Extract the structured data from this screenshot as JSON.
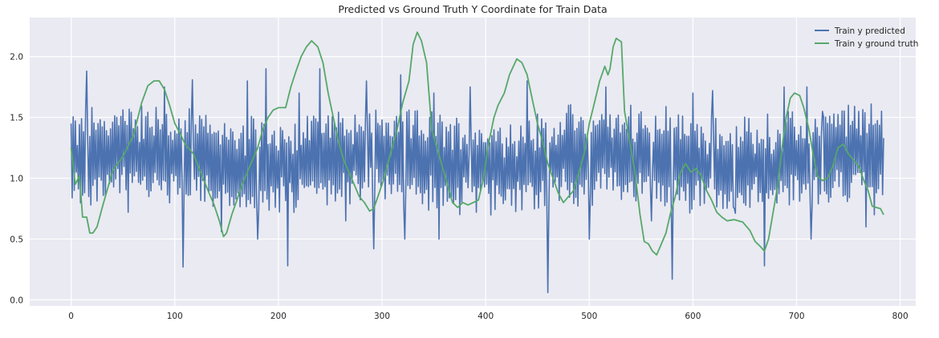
{
  "chart_data": {
    "type": "line",
    "title": "Predicted vs Ground Truth Y Coordinate for Train Data",
    "xlabel": "",
    "ylabel": "",
    "xlim": [
      -40,
      815
    ],
    "ylim": [
      -0.05,
      2.32
    ],
    "x_ticks": [
      0,
      100,
      200,
      300,
      400,
      500,
      600,
      700,
      800
    ],
    "y_ticks": [
      0.0,
      0.5,
      1.0,
      1.5,
      2.0
    ],
    "x_tick_labels": [
      "0",
      "100",
      "200",
      "300",
      "400",
      "500",
      "600",
      "700",
      "800"
    ],
    "y_tick_labels": [
      "0.0",
      "0.5",
      "1.0",
      "1.5",
      "2.0"
    ],
    "grid": true,
    "legend_position": "top-right",
    "n_points": 785,
    "series": [
      {
        "name": "Train y predicted",
        "color": "#4c72b0",
        "description": "noisy prediction oscillating around ~1.2 with spikes",
        "key_points": [
          {
            "x": 0,
            "y": 1.45
          },
          {
            "x": 3,
            "y": 0.9
          },
          {
            "x": 6,
            "y": 1.27
          },
          {
            "x": 10,
            "y": 1.49
          },
          {
            "x": 13,
            "y": 0.88
          },
          {
            "x": 15,
            "y": 1.88
          },
          {
            "x": 19,
            "y": 0.78
          },
          {
            "x": 40,
            "y": 1.46
          },
          {
            "x": 55,
            "y": 0.72
          },
          {
            "x": 90,
            "y": 1.75
          },
          {
            "x": 108,
            "y": 0.27
          },
          {
            "x": 117,
            "y": 1.81
          },
          {
            "x": 145,
            "y": 0.56
          },
          {
            "x": 170,
            "y": 1.8
          },
          {
            "x": 180,
            "y": 0.5
          },
          {
            "x": 188,
            "y": 1.9
          },
          {
            "x": 209,
            "y": 0.28
          },
          {
            "x": 220,
            "y": 1.7
          },
          {
            "x": 240,
            "y": 1.9
          },
          {
            "x": 265,
            "y": 0.65
          },
          {
            "x": 285,
            "y": 1.8
          },
          {
            "x": 292,
            "y": 0.42
          },
          {
            "x": 318,
            "y": 1.85
          },
          {
            "x": 322,
            "y": 0.5
          },
          {
            "x": 350,
            "y": 1.7
          },
          {
            "x": 355,
            "y": 0.5
          },
          {
            "x": 385,
            "y": 1.75
          },
          {
            "x": 391,
            "y": 0.72
          },
          {
            "x": 410,
            "y": 1.3
          },
          {
            "x": 440,
            "y": 1.8
          },
          {
            "x": 460,
            "y": 0.06
          },
          {
            "x": 480,
            "y": 1.6
          },
          {
            "x": 500,
            "y": 0.5
          },
          {
            "x": 516,
            "y": 1.75
          },
          {
            "x": 540,
            "y": 1.6
          },
          {
            "x": 560,
            "y": 0.65
          },
          {
            "x": 580,
            "y": 0.17
          },
          {
            "x": 600,
            "y": 1.7
          },
          {
            "x": 619,
            "y": 1.72
          },
          {
            "x": 640,
            "y": 0.75
          },
          {
            "x": 669,
            "y": 0.28
          },
          {
            "x": 688,
            "y": 1.75
          },
          {
            "x": 710,
            "y": 1.75
          },
          {
            "x": 714,
            "y": 0.5
          },
          {
            "x": 725,
            "y": 1.55
          },
          {
            "x": 750,
            "y": 1.6
          },
          {
            "x": 760,
            "y": 1.55
          },
          {
            "x": 767,
            "y": 0.6
          },
          {
            "x": 775,
            "y": 0.7
          },
          {
            "x": 784,
            "y": 1.33
          }
        ]
      },
      {
        "name": "Train y ground truth",
        "color": "#55a868",
        "description": "slowly oscillating ground truth curve",
        "points": [
          [
            0,
            1.25
          ],
          [
            4,
            0.95
          ],
          [
            8,
            1.02
          ],
          [
            11,
            0.68
          ],
          [
            15,
            0.68
          ],
          [
            18,
            0.55
          ],
          [
            21,
            0.55
          ],
          [
            25,
            0.6
          ],
          [
            30,
            0.76
          ],
          [
            40,
            1.06
          ],
          [
            50,
            1.18
          ],
          [
            60,
            1.35
          ],
          [
            68,
            1.62
          ],
          [
            74,
            1.76
          ],
          [
            80,
            1.8
          ],
          [
            85,
            1.8
          ],
          [
            90,
            1.73
          ],
          [
            95,
            1.6
          ],
          [
            100,
            1.45
          ],
          [
            105,
            1.37
          ],
          [
            110,
            1.28
          ],
          [
            118,
            1.2
          ],
          [
            125,
            1.05
          ],
          [
            132,
            0.9
          ],
          [
            138,
            0.78
          ],
          [
            143,
            0.65
          ],
          [
            147,
            0.52
          ],
          [
            150,
            0.55
          ],
          [
            155,
            0.7
          ],
          [
            160,
            0.82
          ],
          [
            165,
            0.95
          ],
          [
            170,
            1.05
          ],
          [
            175,
            1.15
          ],
          [
            180,
            1.25
          ],
          [
            185,
            1.4
          ],
          [
            190,
            1.5
          ],
          [
            195,
            1.56
          ],
          [
            200,
            1.58
          ],
          [
            207,
            1.58
          ],
          [
            212,
            1.75
          ],
          [
            217,
            1.88
          ],
          [
            222,
            2.0
          ],
          [
            227,
            2.08
          ],
          [
            232,
            2.13
          ],
          [
            238,
            2.08
          ],
          [
            243,
            1.95
          ],
          [
            248,
            1.7
          ],
          [
            253,
            1.5
          ],
          [
            258,
            1.3
          ],
          [
            263,
            1.15
          ],
          [
            268,
            1.05
          ],
          [
            273,
            0.95
          ],
          [
            278,
            0.85
          ],
          [
            283,
            0.8
          ],
          [
            288,
            0.73
          ],
          [
            292,
            0.75
          ],
          [
            296,
            0.85
          ],
          [
            302,
            1.0
          ],
          [
            308,
            1.2
          ],
          [
            314,
            1.38
          ],
          [
            320,
            1.62
          ],
          [
            326,
            1.8
          ],
          [
            330,
            2.1
          ],
          [
            334,
            2.2
          ],
          [
            338,
            2.13
          ],
          [
            343,
            1.95
          ],
          [
            348,
            1.4
          ],
          [
            353,
            1.25
          ],
          [
            358,
            1.1
          ],
          [
            363,
            0.95
          ],
          [
            368,
            0.8
          ],
          [
            373,
            0.76
          ],
          [
            378,
            0.8
          ],
          [
            383,
            0.78
          ],
          [
            388,
            0.8
          ],
          [
            393,
            0.82
          ],
          [
            398,
            1.0
          ],
          [
            402,
            1.25
          ],
          [
            408,
            1.5
          ],
          [
            412,
            1.6
          ],
          [
            418,
            1.7
          ],
          [
            423,
            1.85
          ],
          [
            430,
            1.98
          ],
          [
            435,
            1.95
          ],
          [
            440,
            1.85
          ],
          [
            445,
            1.65
          ],
          [
            450,
            1.45
          ],
          [
            455,
            1.3
          ],
          [
            460,
            1.12
          ],
          [
            465,
            1.0
          ],
          [
            470,
            0.88
          ],
          [
            475,
            0.8
          ],
          [
            480,
            0.85
          ],
          [
            485,
            0.9
          ],
          [
            490,
            1.05
          ],
          [
            495,
            1.2
          ],
          [
            500,
            1.45
          ],
          [
            505,
            1.62
          ],
          [
            510,
            1.8
          ],
          [
            515,
            1.92
          ],
          [
            518,
            1.85
          ],
          [
            520,
            1.9
          ],
          [
            523,
            2.08
          ],
          [
            526,
            2.15
          ],
          [
            531,
            2.12
          ],
          [
            534,
            1.55
          ],
          [
            539,
            1.3
          ],
          [
            544,
            1.05
          ],
          [
            549,
            0.7
          ],
          [
            553,
            0.48
          ],
          [
            557,
            0.46
          ],
          [
            561,
            0.4
          ],
          [
            565,
            0.37
          ],
          [
            569,
            0.45
          ],
          [
            574,
            0.55
          ],
          [
            578,
            0.7
          ],
          [
            583,
            0.85
          ],
          [
            588,
            1.05
          ],
          [
            593,
            1.12
          ],
          [
            598,
            1.05
          ],
          [
            603,
            1.08
          ],
          [
            608,
            1.02
          ],
          [
            613,
            0.9
          ],
          [
            618,
            0.82
          ],
          [
            623,
            0.72
          ],
          [
            628,
            0.68
          ],
          [
            633,
            0.65
          ],
          [
            640,
            0.66
          ],
          [
            648,
            0.64
          ],
          [
            655,
            0.57
          ],
          [
            660,
            0.48
          ],
          [
            665,
            0.44
          ],
          [
            669,
            0.4
          ],
          [
            673,
            0.5
          ],
          [
            677,
            0.7
          ],
          [
            682,
            0.95
          ],
          [
            686,
            1.25
          ],
          [
            690,
            1.5
          ],
          [
            694,
            1.66
          ],
          [
            698,
            1.7
          ],
          [
            703,
            1.68
          ],
          [
            707,
            1.58
          ],
          [
            712,
            1.4
          ],
          [
            716,
            1.2
          ],
          [
            720,
            1.02
          ],
          [
            725,
            0.98
          ],
          [
            730,
            1.0
          ],
          [
            735,
            1.1
          ],
          [
            740,
            1.25
          ],
          [
            745,
            1.28
          ],
          [
            750,
            1.2
          ],
          [
            755,
            1.15
          ],
          [
            760,
            1.1
          ],
          [
            765,
            0.98
          ],
          [
            769,
            0.9
          ],
          [
            773,
            0.77
          ],
          [
            777,
            0.76
          ],
          [
            781,
            0.75
          ],
          [
            784,
            0.7
          ]
        ]
      }
    ]
  }
}
